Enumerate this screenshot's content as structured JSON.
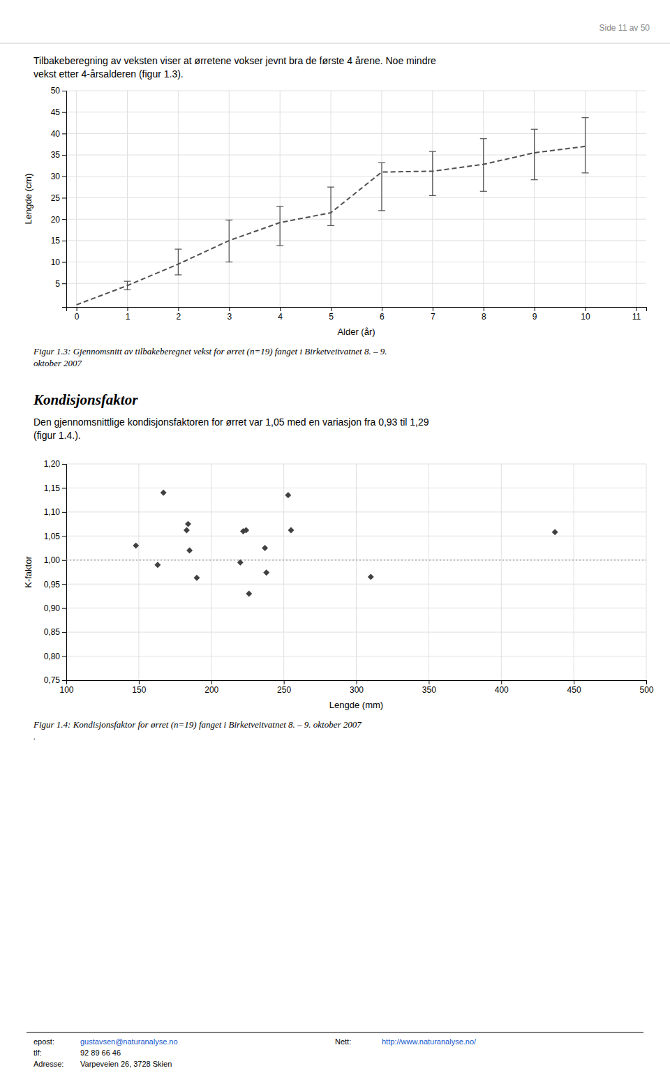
{
  "page": {
    "header": "Side 11 av 50",
    "intro": [
      "Tilbakeberegning av veksten viser at ørretene vokser jevnt bra de første 4 årene. Noe mindre",
      "vekst etter 4-årsalderen (figur 1.3)."
    ],
    "section_header": "Kondisjonsfaktor",
    "section_text": [
      "Den gjennomsnittlige kondisjonsfaktoren for ørret var 1,05 med en variasjon fra 0,93 til 1,29",
      "(figur 1.4.)."
    ],
    "footer": [
      [
        {
          "label": "epost:",
          "value": "gustavsen@naturanalyse.no",
          "color": "#1155cc"
        },
        {
          "label": "Nett:",
          "value": "http://www.naturanalyse.no/",
          "color": "#1155cc"
        }
      ],
      [
        {
          "label": "tlf:",
          "value": "92 89 66 46"
        }
      ],
      [
        {
          "label": "Adresse:",
          "value": "Varpeveien 26, 3728 Skien"
        }
      ]
    ]
  },
  "chart_data": [
    {
      "type": "line",
      "x_label": "Alder (år)",
      "y_label": "Lengde (cm)",
      "x": [
        0,
        1,
        2,
        3,
        4,
        5,
        6,
        7,
        8,
        9,
        10
      ],
      "series": [
        {
          "name": null,
          "color": "#505050",
          "line_style": "dashed",
          "values": [
            0,
            4.5,
            9.5,
            15.0,
            19.2,
            21.5,
            31.0,
            31.2,
            32.8,
            35.5,
            37.0
          ],
          "error_low": [
            null,
            3.5,
            7.0,
            10.0,
            13.8,
            18.5,
            22.0,
            25.5,
            26.5,
            29.2,
            30.8
          ],
          "error_high": [
            null,
            5.5,
            13.0,
            19.8,
            23.0,
            27.5,
            33.2,
            35.8,
            38.8,
            41.0,
            43.7
          ]
        }
      ],
      "xlim": [
        -0.2,
        11.2
      ],
      "ylim": [
        -0.5,
        50
      ],
      "xticks": [
        0,
        1,
        2,
        3,
        4,
        5,
        6,
        7,
        8,
        9,
        10,
        11
      ],
      "yticks": [
        5,
        10,
        15,
        20,
        25,
        30,
        35,
        40,
        45,
        50
      ],
      "grid": true,
      "caption": [
        "Figur 1.3: Gjennomsnitt av tilbakeberegnet vekst for ørret (n=19) fanget i Birketveitvatnet 8. – 9.",
        "oktober 2007"
      ]
    },
    {
      "type": "scatter",
      "x_label": "Lengde (mm)",
      "y_label": "K-faktor",
      "x": [
        148,
        163,
        167,
        183,
        184,
        185,
        190,
        220,
        222,
        224,
        226,
        237,
        238,
        253,
        255,
        310,
        437
      ],
      "series": [
        {
          "name": null,
          "color": "#404040",
          "marker": "diamond",
          "values": [
            1.03,
            0.99,
            1.14,
            1.062,
            1.075,
            1.02,
            0.963,
            0.995,
            1.06,
            1.062,
            0.93,
            1.025,
            0.974,
            1.135,
            1.062,
            0.965,
            1.058
          ]
        }
      ],
      "reference_lines": [
        {
          "y": 1.0,
          "color": "#999999",
          "line_style": "dotted"
        }
      ],
      "xlim": [
        100,
        500
      ],
      "ylim": [
        0.75,
        1.2
      ],
      "xticks": [
        100,
        150,
        200,
        250,
        300,
        350,
        400,
        450,
        500
      ],
      "yticks": [
        {
          "value": 0.75,
          "label": "0,75"
        },
        {
          "value": 0.8,
          "label": "0,80"
        },
        {
          "value": 0.85,
          "label": "0,85"
        },
        {
          "value": 0.9,
          "label": "0,90"
        },
        {
          "value": 0.95,
          "label": "0,95"
        },
        {
          "value": 1.0,
          "label": "1,00"
        },
        {
          "value": 1.05,
          "label": "1,05"
        },
        {
          "value": 1.1,
          "label": "1,10"
        },
        {
          "value": 1.15,
          "label": "1,15"
        },
        {
          "value": 1.2,
          "label": "1,20"
        }
      ],
      "grid": true,
      "caption": [
        "Figur 1.4: Kondisjonsfaktor for ørret (n=19) fanget i Birketveitvatnet 8. – 9. oktober 2007",
        "."
      ]
    }
  ]
}
